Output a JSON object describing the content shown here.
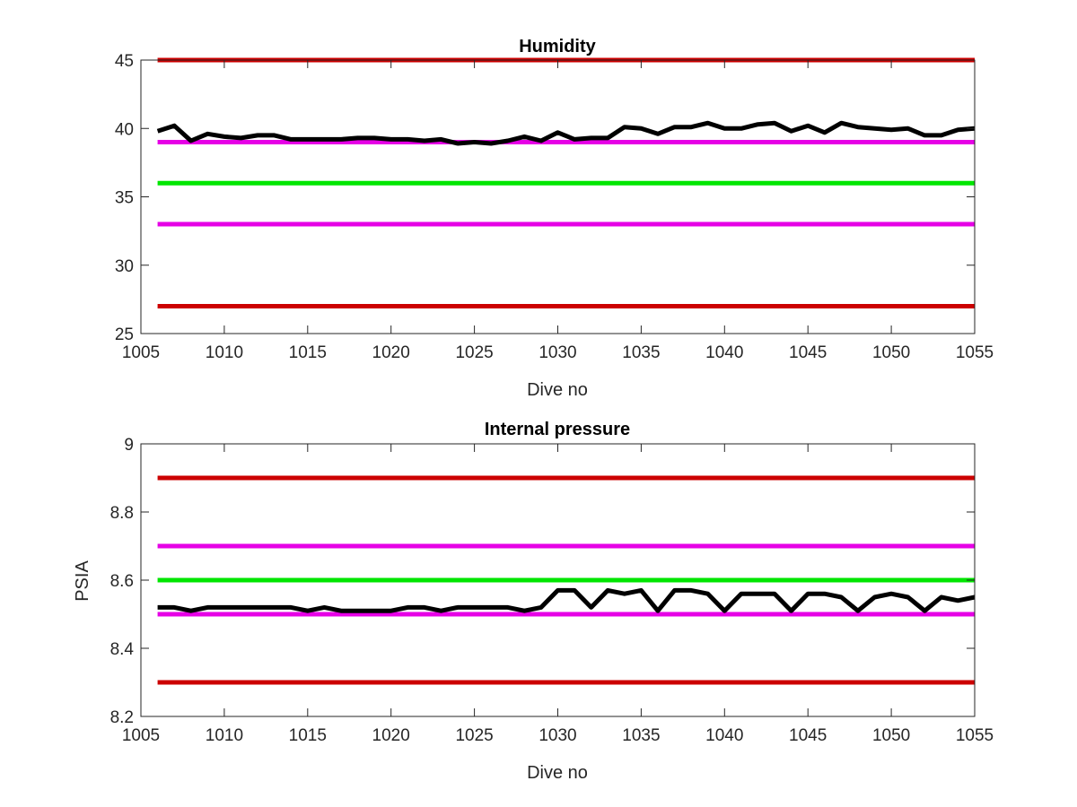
{
  "chart_data": [
    {
      "type": "line",
      "title": "Humidity",
      "xlabel": "Dive no",
      "ylabel": "",
      "xlim": [
        1005,
        1055
      ],
      "ylim": [
        25,
        45
      ],
      "xticks": [
        1005,
        1010,
        1015,
        1020,
        1025,
        1030,
        1035,
        1040,
        1045,
        1050,
        1055
      ],
      "yticks": [
        25,
        30,
        35,
        40,
        45
      ],
      "x": [
        1006,
        1007,
        1008,
        1009,
        1010,
        1011,
        1012,
        1013,
        1014,
        1015,
        1016,
        1017,
        1018,
        1019,
        1020,
        1021,
        1022,
        1023,
        1024,
        1025,
        1026,
        1027,
        1028,
        1029,
        1030,
        1031,
        1032,
        1033,
        1034,
        1035,
        1036,
        1037,
        1038,
        1039,
        1040,
        1041,
        1042,
        1043,
        1044,
        1045,
        1046,
        1047,
        1048,
        1049,
        1050,
        1051,
        1052,
        1053,
        1054,
        1055
      ],
      "series": [
        {
          "color": "#000000",
          "values": [
            39.8,
            40.2,
            39.1,
            39.6,
            39.4,
            39.3,
            39.5,
            39.5,
            39.2,
            39.2,
            39.2,
            39.2,
            39.3,
            39.3,
            39.2,
            39.2,
            39.1,
            39.2,
            38.9,
            39.0,
            38.9,
            39.1,
            39.4,
            39.1,
            39.7,
            39.2,
            39.3,
            39.3,
            40.1,
            40.0,
            39.6,
            40.1,
            40.1,
            40.4,
            40.0,
            40.0,
            40.3,
            40.4,
            39.8,
            40.2,
            39.7,
            40.4,
            40.1,
            40.0,
            39.9,
            40.0,
            39.5,
            39.5,
            39.9,
            40.0
          ]
        }
      ],
      "reference_lines": [
        {
          "y": 45,
          "color": "#CC0000"
        },
        {
          "y": 39,
          "color": "#E600E6"
        },
        {
          "y": 36,
          "color": "#00E600"
        },
        {
          "y": 33,
          "color": "#E600E6"
        },
        {
          "y": 27,
          "color": "#CC0000"
        }
      ],
      "grid": false,
      "legend": "none"
    },
    {
      "type": "line",
      "title": "Internal pressure",
      "xlabel": "Dive no",
      "ylabel": "PSIA",
      "xlim": [
        1005,
        1055
      ],
      "ylim": [
        8.2,
        9
      ],
      "xticks": [
        1005,
        1010,
        1015,
        1020,
        1025,
        1030,
        1035,
        1040,
        1045,
        1050,
        1055
      ],
      "yticks": [
        "8.2",
        "8.4",
        "8.6",
        "8.8",
        "9"
      ],
      "x": [
        1006,
        1007,
        1008,
        1009,
        1010,
        1011,
        1012,
        1013,
        1014,
        1015,
        1016,
        1017,
        1018,
        1019,
        1020,
        1021,
        1022,
        1023,
        1024,
        1025,
        1026,
        1027,
        1028,
        1029,
        1030,
        1031,
        1032,
        1033,
        1034,
        1035,
        1036,
        1037,
        1038,
        1039,
        1040,
        1041,
        1042,
        1043,
        1044,
        1045,
        1046,
        1047,
        1048,
        1049,
        1050,
        1051,
        1052,
        1053,
        1054,
        1055
      ],
      "series": [
        {
          "color": "#000000",
          "values": [
            8.52,
            8.52,
            8.51,
            8.52,
            8.52,
            8.52,
            8.52,
            8.52,
            8.52,
            8.51,
            8.52,
            8.51,
            8.51,
            8.51,
            8.51,
            8.52,
            8.52,
            8.51,
            8.52,
            8.52,
            8.52,
            8.52,
            8.51,
            8.52,
            8.57,
            8.57,
            8.52,
            8.57,
            8.56,
            8.57,
            8.51,
            8.57,
            8.57,
            8.56,
            8.51,
            8.56,
            8.56,
            8.56,
            8.51,
            8.56,
            8.56,
            8.55,
            8.51,
            8.55,
            8.56,
            8.55,
            8.51,
            8.55,
            8.54,
            8.55
          ]
        }
      ],
      "reference_lines": [
        {
          "y": 8.9,
          "color": "#CC0000"
        },
        {
          "y": 8.7,
          "color": "#E600E6"
        },
        {
          "y": 8.6,
          "color": "#00E600"
        },
        {
          "y": 8.5,
          "color": "#E600E6"
        },
        {
          "y": 8.3,
          "color": "#CC0000"
        }
      ],
      "grid": false,
      "legend": "none"
    }
  ]
}
